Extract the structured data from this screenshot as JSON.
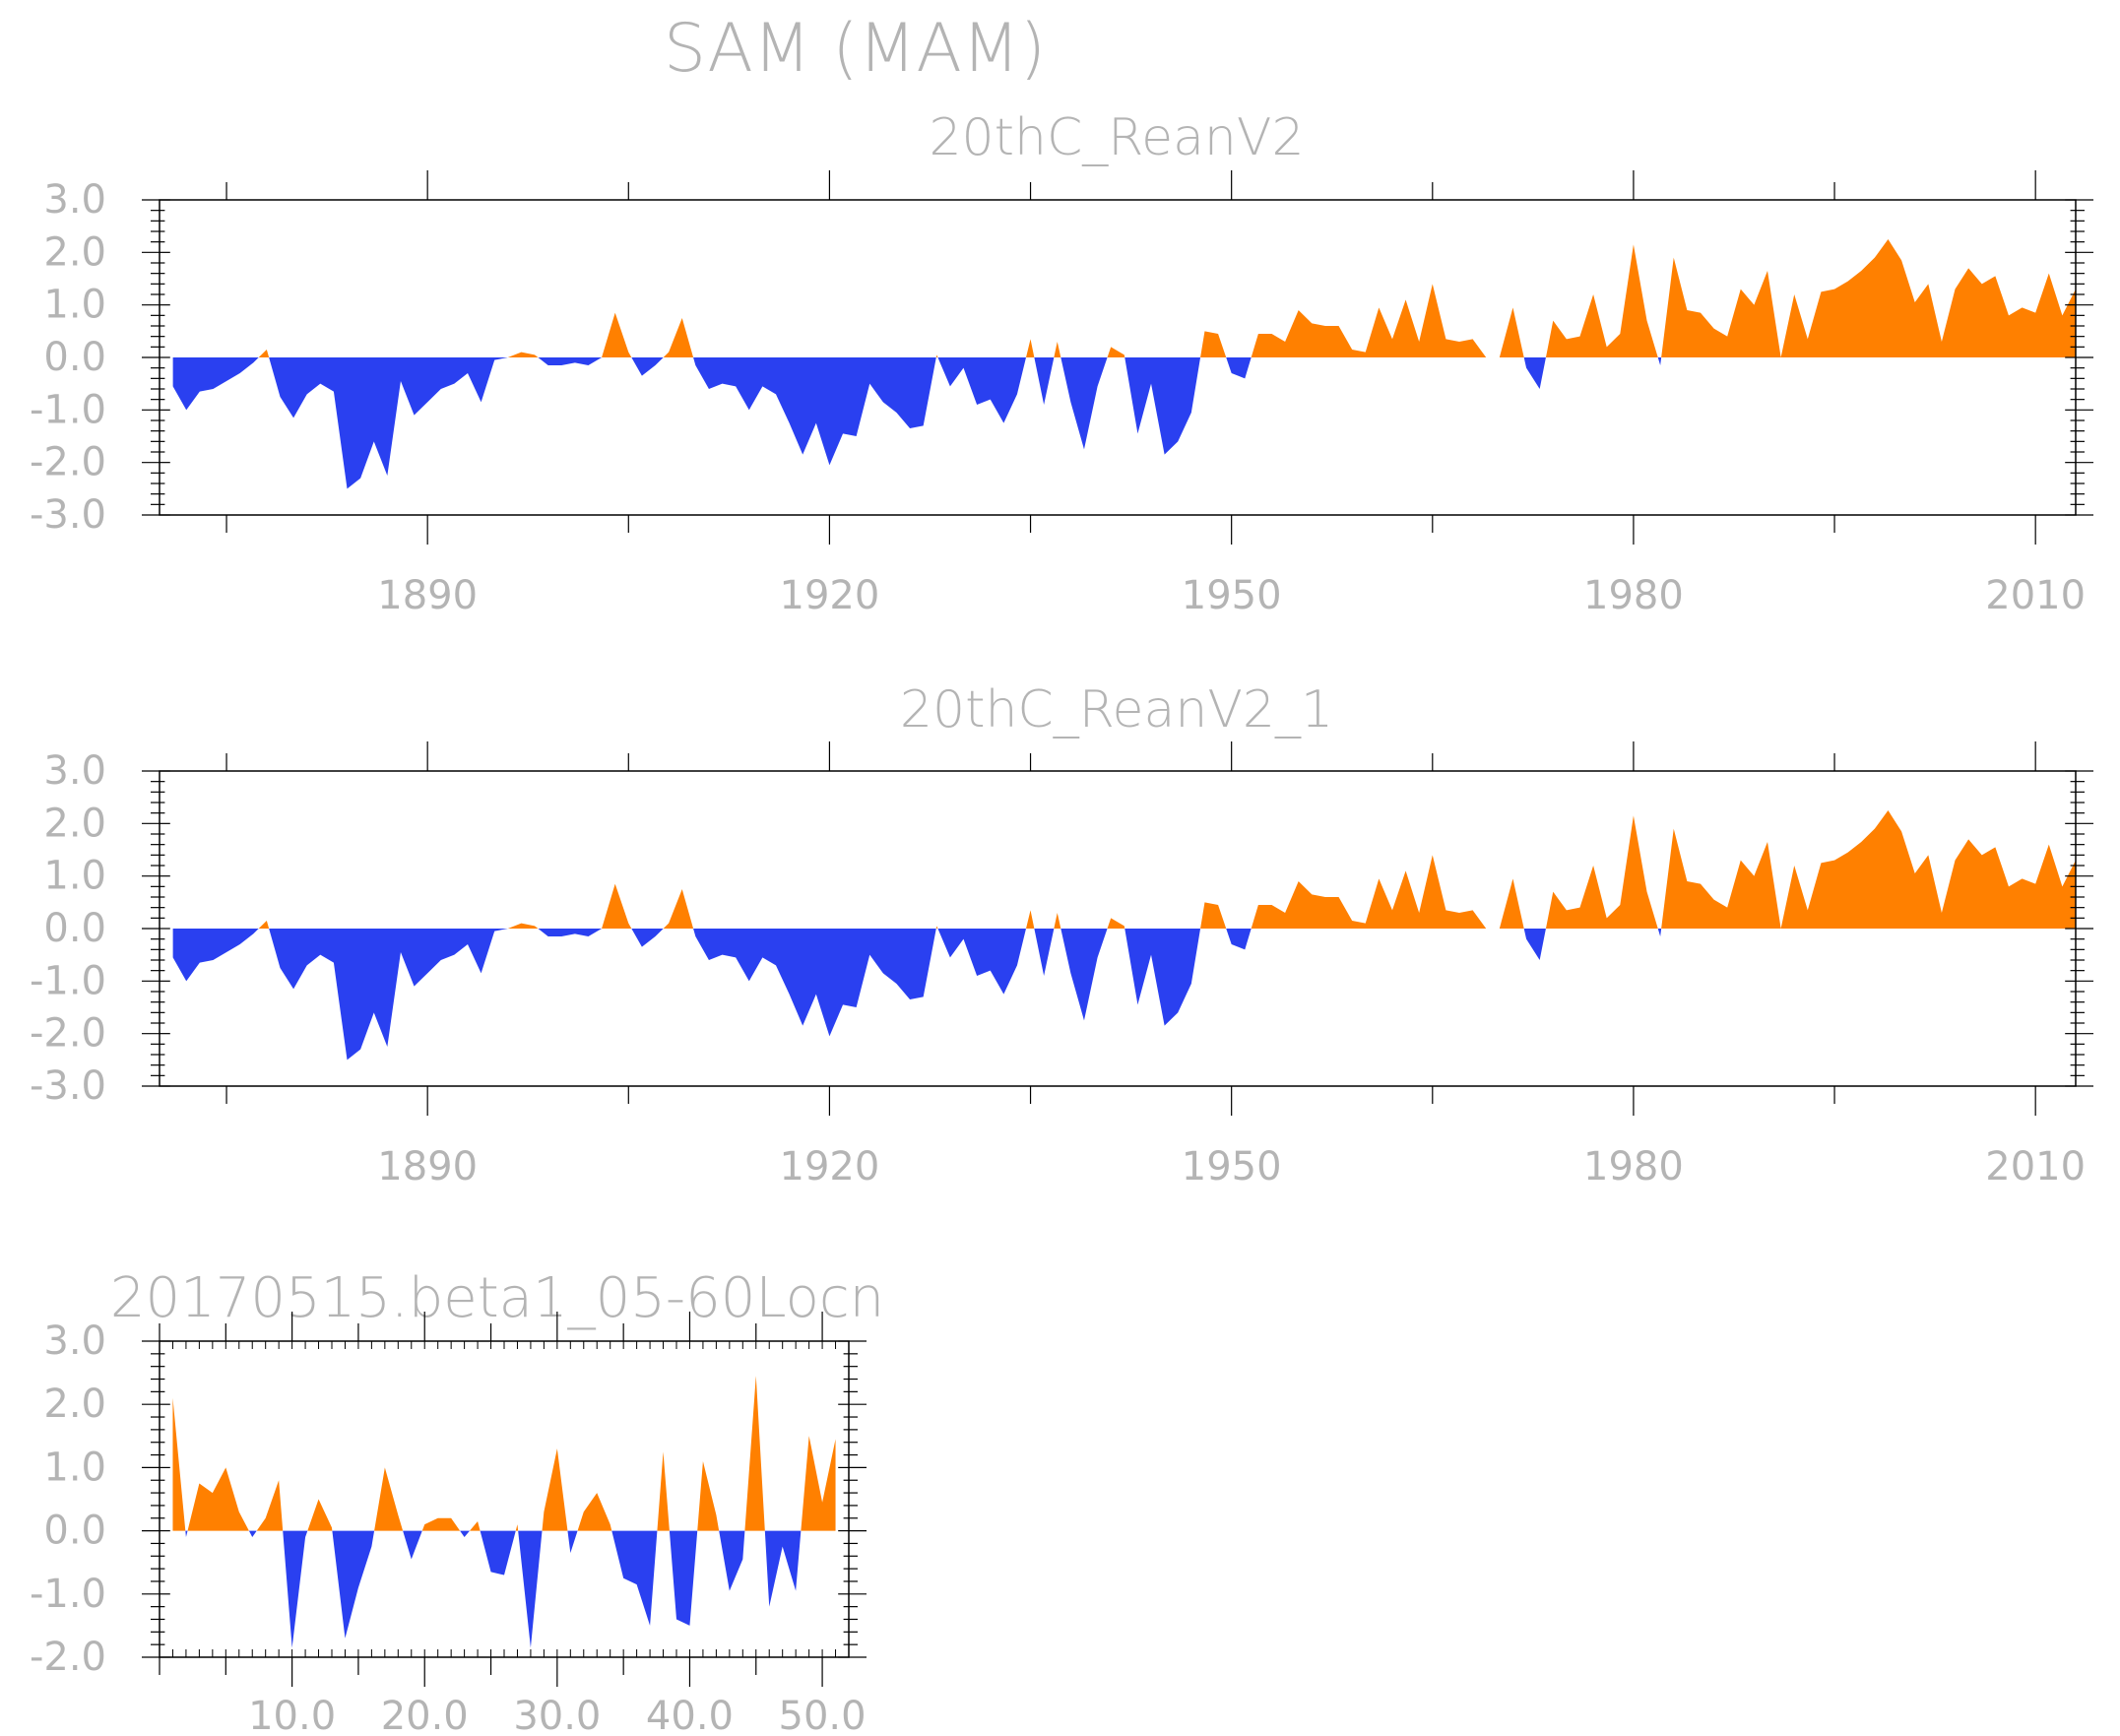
{
  "page": {
    "title": "SAM (MAM)"
  },
  "colors": {
    "positive": "#ff8000",
    "negative": "#2a40f0",
    "text": "#b4b4b4",
    "frame": "#000000"
  },
  "chart_data": [
    {
      "type": "area",
      "title": "20thC_ReanV2",
      "xlabel": "",
      "ylabel": "",
      "xlim": [
        1870,
        2013
      ],
      "ylim": [
        -3.0,
        3.0
      ],
      "xticks": [
        1890,
        1920,
        1950,
        1980,
        2010
      ],
      "xtick_labels": [
        "1890",
        "1920",
        "1950",
        "1980",
        "2010"
      ],
      "yticks": [
        -3.0,
        -2.0,
        -1.0,
        0.0,
        1.0,
        2.0,
        3.0
      ],
      "ytick_labels": [
        "-3.0",
        "-2.0",
        "-1.0",
        "0.0",
        "1.0",
        "2.0",
        "3.0"
      ],
      "x_start": 1871,
      "x_step": 1,
      "series": [
        {
          "values": [
            -0.55,
            -1.0,
            -0.65,
            -0.6,
            -0.45,
            -0.3,
            -0.1,
            0.15,
            -0.75,
            -1.15,
            -0.7,
            -0.5,
            -0.65,
            -2.5,
            -2.3,
            -1.6,
            -2.25,
            -0.45,
            -1.1,
            -0.85,
            -0.6,
            -0.5,
            -0.3,
            -0.85,
            -0.05,
            0.0,
            0.1,
            0.05,
            -0.15,
            -0.15,
            -0.1,
            -0.15,
            0.0,
            0.85,
            0.1,
            -0.35,
            -0.15,
            0.1,
            0.75,
            -0.15,
            -0.6,
            -0.5,
            -0.55,
            -1.0,
            -0.55,
            -0.7,
            -1.25,
            -1.85,
            -1.25,
            -2.05,
            -1.45,
            -1.5,
            -0.5,
            -0.85,
            -1.05,
            -1.35,
            -1.3,
            0.05,
            -0.55,
            -0.2,
            -0.9,
            -0.8,
            -1.25,
            -0.7,
            0.35,
            -0.9,
            0.3,
            -0.85,
            -1.75,
            -0.55,
            0.2,
            0.05,
            -1.45,
            -0.5,
            -1.85,
            -1.6,
            -1.05,
            0.5,
            0.45,
            -0.3,
            -0.4,
            0.45,
            0.45,
            0.3,
            0.9,
            0.65,
            0.6,
            0.6,
            0.15,
            0.1,
            0.95,
            0.35,
            1.1,
            0.3,
            1.4,
            0.35,
            0.3,
            0.35,
            0.0,
            0.0,
            0.95,
            -0.2,
            -0.6,
            0.7,
            0.35,
            0.4,
            1.2,
            0.2,
            0.45,
            2.15,
            0.7,
            -0.15,
            1.9,
            0.9,
            0.85,
            0.55,
            0.4,
            1.3,
            1.0,
            1.65,
            0.0,
            1.2,
            0.35,
            1.25,
            1.3,
            1.45,
            1.65,
            1.9,
            2.25,
            1.85,
            1.05,
            1.4,
            0.3,
            1.3,
            1.7,
            1.4,
            1.55,
            0.8,
            0.95,
            0.85,
            1.6,
            0.8,
            1.3
          ]
        }
      ]
    },
    {
      "type": "area",
      "title": "20thC_ReanV2_1",
      "xlabel": "",
      "ylabel": "",
      "xlim": [
        1870,
        2013
      ],
      "ylim": [
        -3.0,
        3.0
      ],
      "xticks": [
        1890,
        1920,
        1950,
        1980,
        2010
      ],
      "xtick_labels": [
        "1890",
        "1920",
        "1950",
        "1980",
        "2010"
      ],
      "yticks": [
        -3.0,
        -2.0,
        -1.0,
        0.0,
        1.0,
        2.0,
        3.0
      ],
      "ytick_labels": [
        "-3.0",
        "-2.0",
        "-1.0",
        "0.0",
        "1.0",
        "2.0",
        "3.0"
      ],
      "x_start": 1871,
      "x_step": 1,
      "series": [
        {
          "values": [
            -0.55,
            -1.0,
            -0.65,
            -0.6,
            -0.45,
            -0.3,
            -0.1,
            0.15,
            -0.75,
            -1.15,
            -0.7,
            -0.5,
            -0.65,
            -2.5,
            -2.3,
            -1.6,
            -2.25,
            -0.45,
            -1.1,
            -0.85,
            -0.6,
            -0.5,
            -0.3,
            -0.85,
            -0.05,
            0.0,
            0.1,
            0.05,
            -0.15,
            -0.15,
            -0.1,
            -0.15,
            0.0,
            0.85,
            0.1,
            -0.35,
            -0.15,
            0.1,
            0.75,
            -0.15,
            -0.6,
            -0.5,
            -0.55,
            -1.0,
            -0.55,
            -0.7,
            -1.25,
            -1.85,
            -1.25,
            -2.05,
            -1.45,
            -1.5,
            -0.5,
            -0.85,
            -1.05,
            -1.35,
            -1.3,
            0.05,
            -0.55,
            -0.2,
            -0.9,
            -0.8,
            -1.25,
            -0.7,
            0.35,
            -0.9,
            0.3,
            -0.85,
            -1.75,
            -0.55,
            0.2,
            0.05,
            -1.45,
            -0.5,
            -1.85,
            -1.6,
            -1.05,
            0.5,
            0.45,
            -0.3,
            -0.4,
            0.45,
            0.45,
            0.3,
            0.9,
            0.65,
            0.6,
            0.6,
            0.15,
            0.1,
            0.95,
            0.35,
            1.1,
            0.3,
            1.4,
            0.35,
            0.3,
            0.35,
            0.0,
            0.0,
            0.95,
            -0.2,
            -0.6,
            0.7,
            0.35,
            0.4,
            1.2,
            0.2,
            0.45,
            2.15,
            0.7,
            -0.15,
            1.9,
            0.9,
            0.85,
            0.55,
            0.4,
            1.3,
            1.0,
            1.65,
            0.0,
            1.2,
            0.35,
            1.25,
            1.3,
            1.45,
            1.65,
            1.9,
            2.25,
            1.85,
            1.05,
            1.4,
            0.3,
            1.3,
            1.7,
            1.4,
            1.55,
            0.8,
            0.95,
            0.85,
            1.6,
            0.8,
            1.3
          ]
        }
      ]
    },
    {
      "type": "area",
      "title": "20170515.beta1_05-60Locn",
      "xlabel": "",
      "ylabel": "",
      "xlim": [
        0,
        52
      ],
      "ylim": [
        -2.0,
        3.0
      ],
      "xticks": [
        10,
        20,
        30,
        40,
        50
      ],
      "xtick_labels": [
        "10.0",
        "20.0",
        "30.0",
        "40.0",
        "50.0"
      ],
      "yticks": [
        -2.0,
        -1.0,
        0.0,
        1.0,
        2.0,
        3.0
      ],
      "ytick_labels": [
        "-2.0",
        "-1.0",
        "0.0",
        "1.0",
        "2.0",
        "3.0"
      ],
      "x_start": 1,
      "x_step": 1,
      "series": [
        {
          "values": [
            2.1,
            -0.1,
            0.75,
            0.6,
            1.0,
            0.3,
            -0.1,
            0.2,
            0.8,
            -1.85,
            -0.1,
            0.5,
            0.05,
            -1.7,
            -0.9,
            -0.25,
            1.0,
            0.25,
            -0.45,
            0.1,
            0.2,
            0.2,
            -0.1,
            0.15,
            -0.65,
            -0.7,
            0.1,
            -1.85,
            0.3,
            1.3,
            -0.35,
            0.3,
            0.6,
            0.1,
            -0.75,
            -0.85,
            -1.5,
            1.25,
            -1.4,
            -1.5,
            1.1,
            0.25,
            -0.95,
            -0.45,
            2.45,
            -1.2,
            -0.25,
            -0.95,
            1.5,
            0.45,
            1.45
          ]
        }
      ]
    }
  ]
}
